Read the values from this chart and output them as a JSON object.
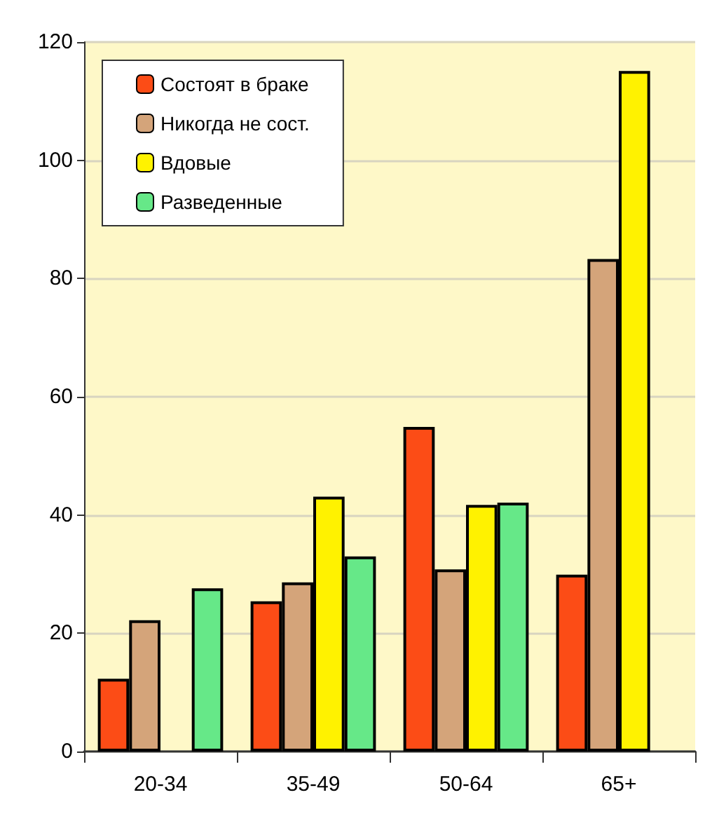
{
  "chart_data": {
    "type": "bar",
    "categories": [
      "20-34",
      "35-49",
      "50-64",
      "65+"
    ],
    "series": [
      {
        "name": "Состоят в браке",
        "color": "#fc4c16",
        "values": [
          12.3,
          25.4,
          54.9,
          29.9
        ]
      },
      {
        "name": "Никогда не сост.",
        "color": "#d4a47a",
        "values": [
          22.2,
          28.6,
          30.8,
          83.3
        ]
      },
      {
        "name": "Вдовые",
        "color": "#fff200",
        "values": [
          null,
          43.1,
          41.7,
          115.1
        ]
      },
      {
        "name": "Разведенные",
        "color": "#66e888",
        "values": [
          27.6,
          33.0,
          42.1,
          null
        ]
      }
    ],
    "ylim": [
      0,
      120
    ],
    "yticks": [
      0,
      20,
      40,
      60,
      80,
      100,
      120
    ],
    "grid": "y",
    "legend": "top left"
  }
}
